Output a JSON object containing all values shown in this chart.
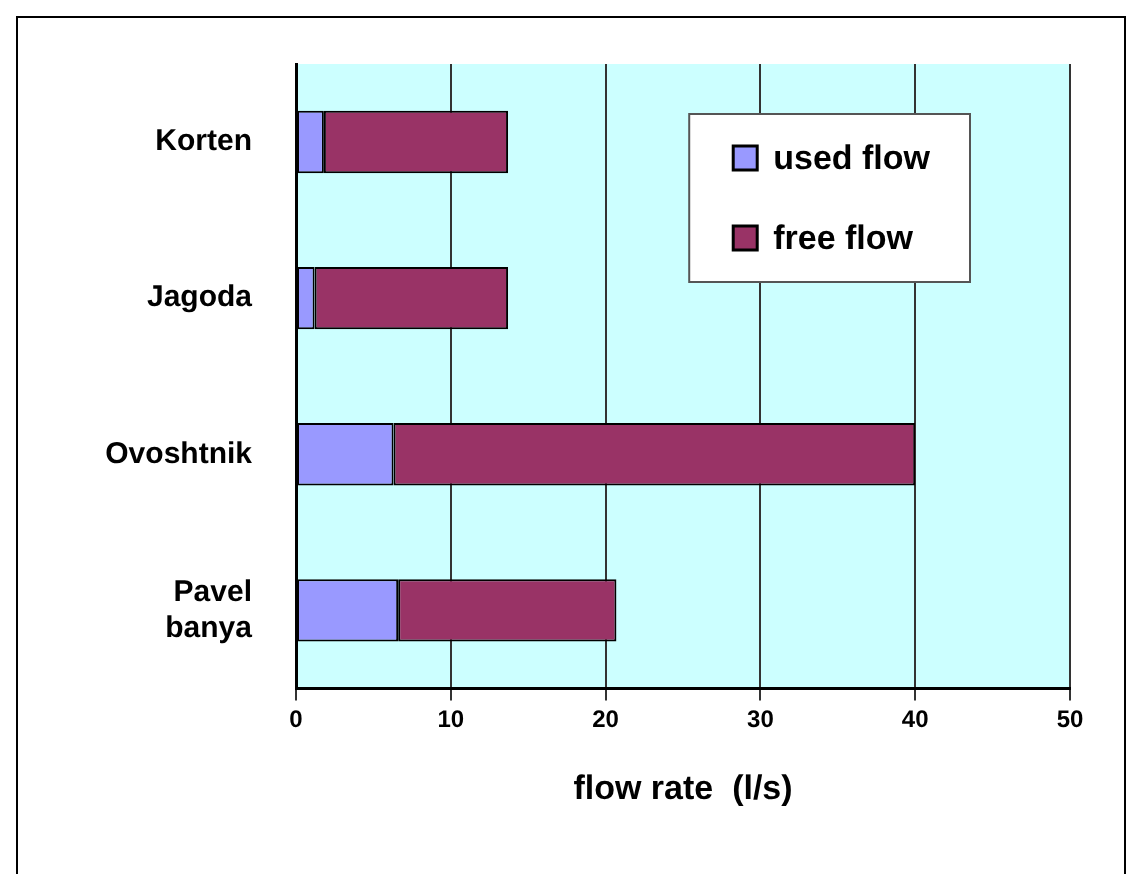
{
  "chart_data": {
    "type": "bar",
    "orientation": "horizontal",
    "stacked": true,
    "categories": [
      "Korten",
      "Jagoda",
      "Ovoshtnik",
      "Pavel banya"
    ],
    "series": [
      {
        "name": "used flow",
        "color": "#9999ff",
        "values": [
          1.8,
          1.2,
          6.3,
          6.6
        ]
      },
      {
        "name": "free flow",
        "color": "#993366",
        "values": [
          11.9,
          12.5,
          33.7,
          14.1
        ]
      }
    ],
    "xlabel": "flow rate  (l/s)",
    "xlim": [
      0,
      50
    ],
    "xticks": [
      0,
      10,
      20,
      30,
      40,
      50
    ],
    "grid": "x",
    "legend": "top right"
  }
}
